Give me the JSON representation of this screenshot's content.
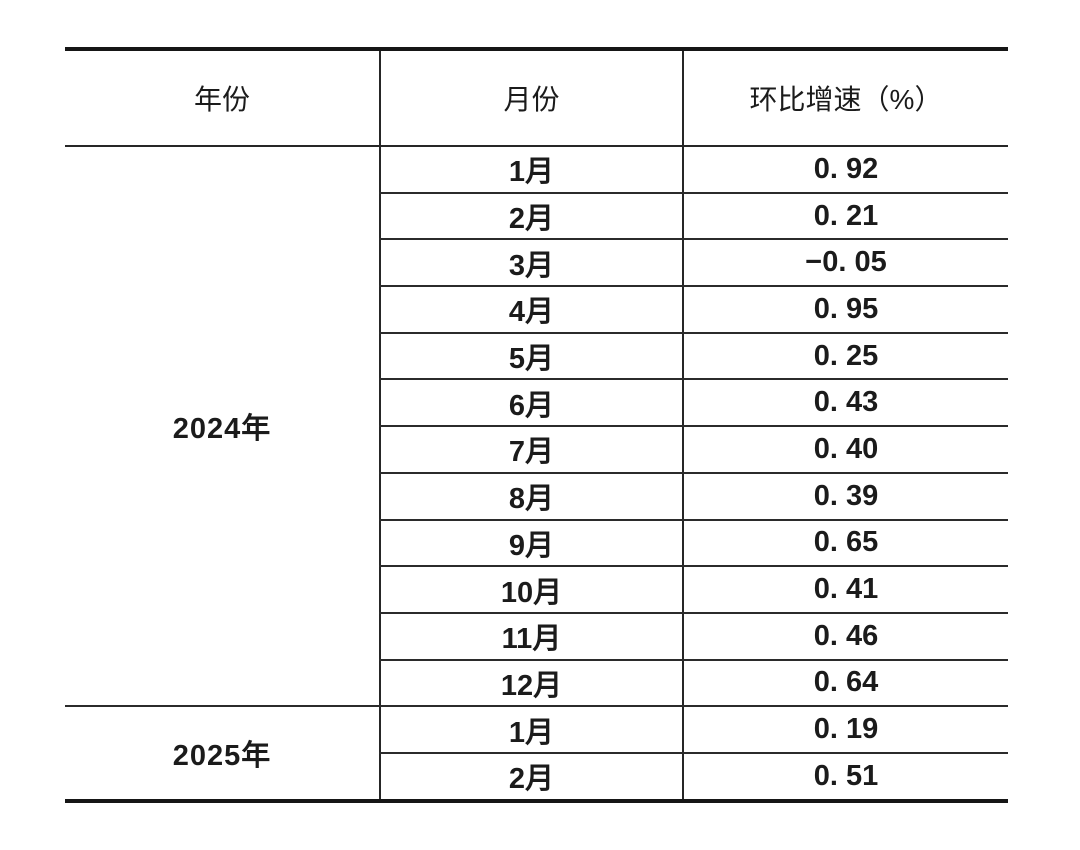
{
  "page": {
    "background": "#ffffff"
  },
  "table": {
    "columns": [
      {
        "label": "年份"
      },
      {
        "label": "月份"
      },
      {
        "label": "环比增速（%）"
      }
    ],
    "groups": [
      {
        "year": "2024年",
        "rows": [
          {
            "month": "1月",
            "value": "0. 92"
          },
          {
            "month": "2月",
            "value": "0. 21"
          },
          {
            "month": "3月",
            "value": "−0. 05"
          },
          {
            "month": "4月",
            "value": "0. 95"
          },
          {
            "month": "5月",
            "value": "0. 25"
          },
          {
            "month": "6月",
            "value": "0. 43"
          },
          {
            "month": "7月",
            "value": "0. 40"
          },
          {
            "month": "8月",
            "value": "0. 39"
          },
          {
            "month": "9月",
            "value": "0. 65"
          },
          {
            "month": "10月",
            "value": "0. 41"
          },
          {
            "month": "11月",
            "value": "0. 46"
          },
          {
            "month": "12月",
            "value": "0. 64"
          }
        ]
      },
      {
        "year": "2025年",
        "rows": [
          {
            "month": "1月",
            "value": "0. 19"
          },
          {
            "month": "2月",
            "value": "0. 51"
          }
        ]
      }
    ],
    "colors": {
      "text": "#1b1b1b",
      "border_thick": "#161616",
      "border_thin": "#2b2b2b"
    }
  }
}
